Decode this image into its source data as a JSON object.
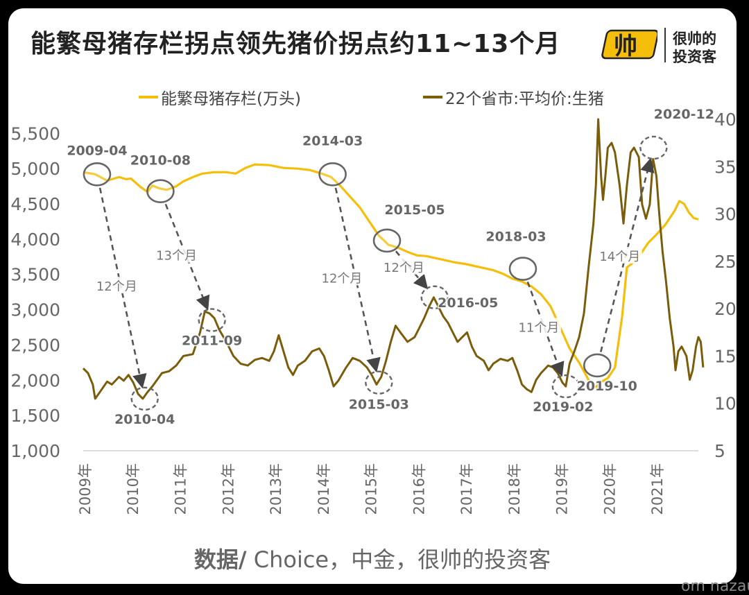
{
  "title": "能繁母猪存栏拐点领先猪价拐点约11~13个月",
  "logo": {
    "mark": "帅",
    "line1": "很帅的",
    "line2": "投资客"
  },
  "source_prefix": "数据/",
  "source_text": " Choice，中金，很帅的投资客",
  "corner_text": "om nazau",
  "colors": {
    "sow": "#F5BE0A",
    "price": "#7A5C0A",
    "arrow": "#555555",
    "circle": "#666666"
  },
  "chart_data": {
    "type": "line",
    "x_categories": [
      "2009年",
      "2010年",
      "2011年",
      "2012年",
      "2013年",
      "2014年",
      "2015年",
      "2016年",
      "2017年",
      "2018年",
      "2019年",
      "2020年",
      "2021年"
    ],
    "x_range": [
      2009.0,
      2021.9
    ],
    "y_left": {
      "ticks": [
        "1,000",
        "1,500",
        "2,000",
        "2,500",
        "3,000",
        "3,500",
        "4,000",
        "4,500",
        "5,000",
        "5,500"
      ],
      "range": [
        1000,
        5700
      ]
    },
    "y_right": {
      "ticks": [
        "5",
        "10",
        "15",
        "20",
        "25",
        "30",
        "35",
        "40"
      ],
      "range": [
        5,
        40
      ]
    },
    "grid": false,
    "legend_position": "top",
    "series": [
      {
        "name": "能繁母猪存栏(万头)",
        "axis": "left",
        "points": [
          [
            2009.0,
            4950
          ],
          [
            2009.25,
            4920
          ],
          [
            2009.5,
            4830
          ],
          [
            2009.75,
            4880
          ],
          [
            2009.9,
            4850
          ],
          [
            2010.0,
            4860
          ],
          [
            2010.2,
            4740
          ],
          [
            2010.35,
            4670
          ],
          [
            2010.45,
            4760
          ],
          [
            2010.6,
            4720
          ],
          [
            2010.75,
            4700
          ],
          [
            2010.95,
            4750
          ],
          [
            2011.1,
            4820
          ],
          [
            2011.3,
            4880
          ],
          [
            2011.5,
            4930
          ],
          [
            2011.75,
            4950
          ],
          [
            2012.0,
            4950
          ],
          [
            2012.2,
            4930
          ],
          [
            2012.4,
            5010
          ],
          [
            2012.6,
            5060
          ],
          [
            2012.9,
            5050
          ],
          [
            2013.2,
            5010
          ],
          [
            2013.5,
            5000
          ],
          [
            2013.75,
            4980
          ],
          [
            2014.0,
            4930
          ],
          [
            2014.2,
            4880
          ],
          [
            2014.4,
            4750
          ],
          [
            2014.6,
            4600
          ],
          [
            2014.8,
            4450
          ],
          [
            2015.0,
            4250
          ],
          [
            2015.2,
            4050
          ],
          [
            2015.4,
            3920
          ],
          [
            2015.6,
            3880
          ],
          [
            2015.8,
            3820
          ],
          [
            2016.0,
            3770
          ],
          [
            2016.2,
            3760
          ],
          [
            2016.4,
            3730
          ],
          [
            2016.6,
            3700
          ],
          [
            2016.8,
            3670
          ],
          [
            2017.0,
            3650
          ],
          [
            2017.2,
            3620
          ],
          [
            2017.4,
            3590
          ],
          [
            2017.6,
            3560
          ],
          [
            2017.8,
            3510
          ],
          [
            2018.0,
            3440
          ],
          [
            2018.2,
            3400
          ],
          [
            2018.4,
            3330
          ],
          [
            2018.6,
            3220
          ],
          [
            2018.8,
            3050
          ],
          [
            2019.0,
            2750
          ],
          [
            2019.2,
            2450
          ],
          [
            2019.4,
            2250
          ],
          [
            2019.6,
            2000
          ],
          [
            2019.75,
            1900
          ],
          [
            2019.85,
            1970
          ],
          [
            2020.0,
            2030
          ],
          [
            2020.15,
            2180
          ],
          [
            2020.3,
            2900
          ],
          [
            2020.4,
            3600
          ],
          [
            2020.5,
            3650
          ],
          [
            2020.7,
            3800
          ],
          [
            2020.85,
            3950
          ],
          [
            2021.0,
            4050
          ],
          [
            2021.2,
            4200
          ],
          [
            2021.4,
            4400
          ],
          [
            2021.5,
            4540
          ],
          [
            2021.6,
            4500
          ],
          [
            2021.7,
            4380
          ],
          [
            2021.8,
            4300
          ],
          [
            2021.9,
            4280
          ]
        ]
      },
      {
        "name": "22个省市:平均价:生猪",
        "axis": "right",
        "points": [
          [
            2009.0,
            13.7
          ],
          [
            2009.1,
            13.2
          ],
          [
            2009.2,
            12.0
          ],
          [
            2009.25,
            10.5
          ],
          [
            2009.35,
            11.2
          ],
          [
            2009.5,
            12.3
          ],
          [
            2009.6,
            12.0
          ],
          [
            2009.75,
            12.8
          ],
          [
            2009.85,
            12.4
          ],
          [
            2009.95,
            13.0
          ],
          [
            2010.05,
            12.2
          ],
          [
            2010.15,
            11.0
          ],
          [
            2010.25,
            10.5
          ],
          [
            2010.35,
            11.2
          ],
          [
            2010.45,
            11.8
          ],
          [
            2010.55,
            12.5
          ],
          [
            2010.65,
            13.2
          ],
          [
            2010.8,
            13.4
          ],
          [
            2010.95,
            14.0
          ],
          [
            2011.1,
            15.0
          ],
          [
            2011.3,
            15.2
          ],
          [
            2011.45,
            17.5
          ],
          [
            2011.55,
            19.7
          ],
          [
            2011.65,
            19.5
          ],
          [
            2011.75,
            19.0
          ],
          [
            2011.85,
            17.8
          ],
          [
            2012.0,
            16.5
          ],
          [
            2012.15,
            15.0
          ],
          [
            2012.3,
            14.2
          ],
          [
            2012.45,
            14.0
          ],
          [
            2012.6,
            14.6
          ],
          [
            2012.75,
            14.8
          ],
          [
            2012.9,
            14.5
          ],
          [
            2013.0,
            15.5
          ],
          [
            2013.1,
            17.2
          ],
          [
            2013.2,
            15.5
          ],
          [
            2013.3,
            13.8
          ],
          [
            2013.4,
            13.0
          ],
          [
            2013.5,
            14.0
          ],
          [
            2013.65,
            14.5
          ],
          [
            2013.8,
            15.5
          ],
          [
            2013.95,
            15.8
          ],
          [
            2014.05,
            15.0
          ],
          [
            2014.15,
            13.5
          ],
          [
            2014.25,
            11.8
          ],
          [
            2014.35,
            12.4
          ],
          [
            2014.5,
            13.7
          ],
          [
            2014.65,
            14.8
          ],
          [
            2014.8,
            14.5
          ],
          [
            2014.95,
            13.8
          ],
          [
            2015.05,
            13.0
          ],
          [
            2015.15,
            12.0
          ],
          [
            2015.25,
            12.8
          ],
          [
            2015.35,
            14.5
          ],
          [
            2015.45,
            16.5
          ],
          [
            2015.55,
            18.2
          ],
          [
            2015.65,
            17.5
          ],
          [
            2015.8,
            16.5
          ],
          [
            2015.95,
            17.0
          ],
          [
            2016.05,
            18.0
          ],
          [
            2016.15,
            19.0
          ],
          [
            2016.25,
            20.2
          ],
          [
            2016.35,
            21.2
          ],
          [
            2016.45,
            20.2
          ],
          [
            2016.55,
            19.2
          ],
          [
            2016.65,
            18.5
          ],
          [
            2016.75,
            17.5
          ],
          [
            2016.85,
            16.5
          ],
          [
            2016.95,
            17.0
          ],
          [
            2017.05,
            17.5
          ],
          [
            2017.15,
            16.0
          ],
          [
            2017.25,
            15.0
          ],
          [
            2017.4,
            14.5
          ],
          [
            2017.5,
            13.5
          ],
          [
            2017.6,
            14.2
          ],
          [
            2017.75,
            14.7
          ],
          [
            2017.9,
            14.5
          ],
          [
            2018.0,
            14.8
          ],
          [
            2018.1,
            13.5
          ],
          [
            2018.2,
            12.0
          ],
          [
            2018.3,
            11.5
          ],
          [
            2018.4,
            11.2
          ],
          [
            2018.5,
            12.5
          ],
          [
            2018.6,
            13.2
          ],
          [
            2018.75,
            14.0
          ],
          [
            2018.85,
            13.8
          ],
          [
            2018.95,
            13.2
          ],
          [
            2019.05,
            12.2
          ],
          [
            2019.12,
            11.8
          ],
          [
            2019.2,
            14.2
          ],
          [
            2019.3,
            15.5
          ],
          [
            2019.4,
            17.0
          ],
          [
            2019.5,
            19.5
          ],
          [
            2019.6,
            24.5
          ],
          [
            2019.7,
            29.0
          ],
          [
            2019.75,
            33.0
          ],
          [
            2019.8,
            40.0
          ],
          [
            2019.86,
            34.0
          ],
          [
            2019.9,
            31.5
          ],
          [
            2019.95,
            34.0
          ],
          [
            2020.0,
            37.0
          ],
          [
            2020.08,
            37.5
          ],
          [
            2020.15,
            36.5
          ],
          [
            2020.25,
            33.0
          ],
          [
            2020.33,
            29.0
          ],
          [
            2020.4,
            33.0
          ],
          [
            2020.48,
            36.5
          ],
          [
            2020.55,
            37.0
          ],
          [
            2020.65,
            36.0
          ],
          [
            2020.72,
            31.0
          ],
          [
            2020.8,
            29.5
          ],
          [
            2020.88,
            31.0
          ],
          [
            2020.95,
            35.8
          ],
          [
            2021.02,
            34.0
          ],
          [
            2021.08,
            30.0
          ],
          [
            2021.15,
            26.0
          ],
          [
            2021.22,
            23.0
          ],
          [
            2021.3,
            19.0
          ],
          [
            2021.38,
            16.0
          ],
          [
            2021.42,
            13.5
          ],
          [
            2021.48,
            15.5
          ],
          [
            2021.55,
            16.0
          ],
          [
            2021.65,
            15.0
          ],
          [
            2021.72,
            12.5
          ],
          [
            2021.78,
            13.5
          ],
          [
            2021.85,
            16.0
          ],
          [
            2021.9,
            17.0
          ],
          [
            2021.95,
            16.5
          ],
          [
            2022.0,
            13.8
          ]
        ]
      }
    ],
    "annotations": [
      {
        "label": "2009-04",
        "x": 2009.29,
        "y": 4920,
        "axis": "left",
        "style": "solid"
      },
      {
        "label": "2010-04",
        "x": 2010.29,
        "y": 10.5,
        "axis": "right",
        "style": "dashed"
      },
      {
        "label": "2010-08",
        "x": 2010.62,
        "y": 4680,
        "axis": "left",
        "style": "solid"
      },
      {
        "label": "2011-09",
        "x": 2011.7,
        "y": 18.8,
        "axis": "right",
        "style": "dashed"
      },
      {
        "label": "2014-03",
        "x": 2014.23,
        "y": 4920,
        "axis": "left",
        "style": "solid"
      },
      {
        "label": "2015-03",
        "x": 2015.2,
        "y": 12.2,
        "axis": "right",
        "style": "dashed"
      },
      {
        "label": "2015-05",
        "x": 2015.37,
        "y": 3980,
        "axis": "left",
        "style": "solid"
      },
      {
        "label": "2016-05",
        "x": 2016.37,
        "y": 21.2,
        "axis": "right",
        "style": "dashed"
      },
      {
        "label": "2018-03",
        "x": 2018.22,
        "y": 3580,
        "axis": "left",
        "style": "solid"
      },
      {
        "label": "2019-02",
        "x": 2019.12,
        "y": 11.8,
        "axis": "right",
        "style": "dashed"
      },
      {
        "label": "2019-10",
        "x": 2019.78,
        "y": 2210,
        "axis": "left",
        "style": "solid"
      },
      {
        "label": "2020-12",
        "x": 2020.96,
        "y": 37.0,
        "axis": "right",
        "style": "dashed"
      }
    ],
    "lead_arrows": [
      {
        "from": 0,
        "to": 1,
        "label": "12个月"
      },
      {
        "from": 2,
        "to": 3,
        "label": "13个月"
      },
      {
        "from": 4,
        "to": 5,
        "label": "12个月"
      },
      {
        "from": 6,
        "to": 7,
        "label": "12个月"
      },
      {
        "from": 8,
        "to": 9,
        "label": "11个月"
      },
      {
        "from": 10,
        "to": 11,
        "label": "14个月"
      }
    ]
  }
}
